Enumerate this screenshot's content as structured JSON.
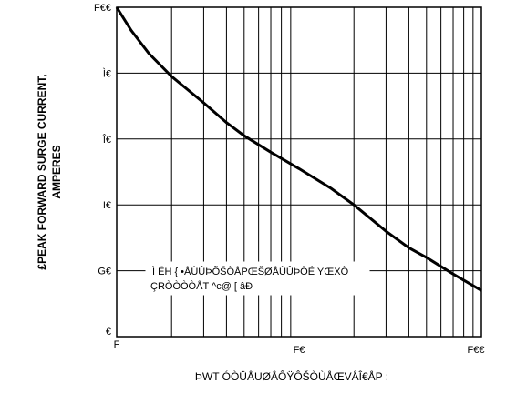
{
  "chart_data": {
    "type": "line",
    "xscale": "log",
    "xlim": [
      1,
      100
    ],
    "ylim": [
      0,
      100
    ],
    "grid": true,
    "ylabel_line1": "£PEAK  FORWARD SURGE CURRENT,",
    "ylabel_line2": "AMPERES",
    "xlabel": "ÞWT ÓÒÜÅUØÅÔŸÔŠÒÙÅŒVÅÎ€ÅP :",
    "xtick_labels": [
      "F",
      "F€",
      "F€€"
    ],
    "ytick_labels": [
      "€",
      "G€",
      "I€",
      "Î€",
      "Ì€",
      "F€€"
    ],
    "annotation_line1": "Ì ËH { •ÅÙÛÞÕŠÒÅPŒŠØÅÙÛÞÒÉ YŒXÒ",
    "annotation_line2": "ÇRÒÒÒÒÅT ^c@ [ âÐ",
    "series": [
      {
        "x": [
          1,
          1.2,
          1.5,
          2,
          3,
          4,
          5,
          7,
          10,
          15,
          20,
          30,
          40,
          50,
          70,
          100
        ],
        "values": [
          100,
          93,
          86,
          79,
          71,
          65,
          61,
          56,
          51,
          45,
          40,
          32,
          27,
          24,
          19,
          14
        ]
      }
    ]
  }
}
